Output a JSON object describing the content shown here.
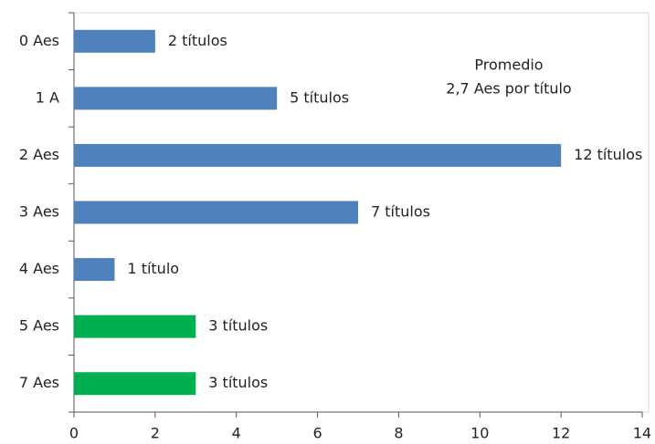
{
  "chart_data": {
    "type": "bar",
    "orientation": "horizontal",
    "categories": [
      "0 Aes",
      "1 A",
      "2 Aes",
      "3 Aes",
      "4 Aes",
      "5 Aes",
      "7 Aes"
    ],
    "values": [
      2,
      5,
      12,
      7,
      1,
      3,
      3
    ],
    "value_labels": [
      "2 títulos",
      "5  títulos",
      "12 títulos",
      "7 títulos",
      "1 título",
      "3 títulos",
      "3 títulos"
    ],
    "colors": [
      "#4f81bd",
      "#4f81bd",
      "#4f81bd",
      "#4f81bd",
      "#4f81bd",
      "#00b050",
      "#00b050"
    ],
    "annotations": [
      "Promedio",
      "2,7 Aes por título"
    ],
    "xlim": [
      0,
      14
    ],
    "xticks": [
      0,
      2,
      4,
      6,
      8,
      10,
      12,
      14
    ],
    "grid": false
  }
}
